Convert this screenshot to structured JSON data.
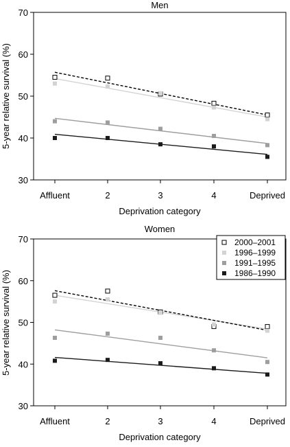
{
  "chart_data": [
    {
      "type": "scatter",
      "title": "Men",
      "xlabel": "Deprivation category",
      "ylabel": "5-year relative survival (%)",
      "categories": [
        "Affluent",
        "2",
        "3",
        "4",
        "Deprived"
      ],
      "ylim": [
        30,
        70
      ],
      "yticks": [
        30,
        40,
        50,
        60,
        70
      ],
      "legend": false,
      "series": [
        {
          "name": "2000–2001",
          "marker": "open-square",
          "color": "#000000",
          "values": [
            54.5,
            54.3,
            50.5,
            48.3,
            45.5
          ],
          "trend": [
            55.7,
            45.5
          ]
        },
        {
          "name": "1996–1999",
          "marker": "filled-square",
          "color": "#d3d3d3",
          "values": [
            53.0,
            52.3,
            50.7,
            47.3,
            44.5
          ],
          "trend": [
            54.2,
            45.0
          ]
        },
        {
          "name": "1991–1995",
          "marker": "filled-square",
          "color": "#9e9e9e",
          "values": [
            44.0,
            43.7,
            42.2,
            40.5,
            38.3
          ],
          "trend": [
            44.7,
            38.7
          ]
        },
        {
          "name": "1986–1990",
          "marker": "filled-square",
          "color": "#1a1a1a",
          "values": [
            40.0,
            40.0,
            38.5,
            38.0,
            35.5
          ],
          "trend": [
            40.9,
            36.1
          ]
        }
      ]
    },
    {
      "type": "scatter",
      "title": "Women",
      "xlabel": "Deprivation category",
      "ylabel": "5-year relative survival (%)",
      "categories": [
        "Affluent",
        "2",
        "3",
        "4",
        "Deprived"
      ],
      "ylim": [
        30,
        70
      ],
      "yticks": [
        30,
        40,
        50,
        60,
        70
      ],
      "legend": true,
      "legend_position": "top-right",
      "series": [
        {
          "name": "2000–2001",
          "marker": "open-square",
          "color": "#000000",
          "values": [
            56.5,
            57.5,
            52.5,
            49.0,
            49.0
          ],
          "trend": [
            57.6,
            48.1
          ]
        },
        {
          "name": "1996–1999",
          "marker": "filled-square",
          "color": "#d3d3d3",
          "values": [
            55.0,
            55.5,
            52.3,
            49.5,
            48.0
          ],
          "trend": [
            56.5,
            48.4
          ]
        },
        {
          "name": "1991–1995",
          "marker": "filled-square",
          "color": "#9e9e9e",
          "values": [
            46.3,
            47.3,
            46.3,
            43.3,
            40.5
          ],
          "trend": [
            48.2,
            41.5
          ]
        },
        {
          "name": "1986–1990",
          "marker": "filled-square",
          "color": "#1a1a1a",
          "values": [
            40.8,
            41.0,
            40.2,
            39.0,
            37.5
          ],
          "trend": [
            41.6,
            37.8
          ]
        }
      ]
    }
  ]
}
